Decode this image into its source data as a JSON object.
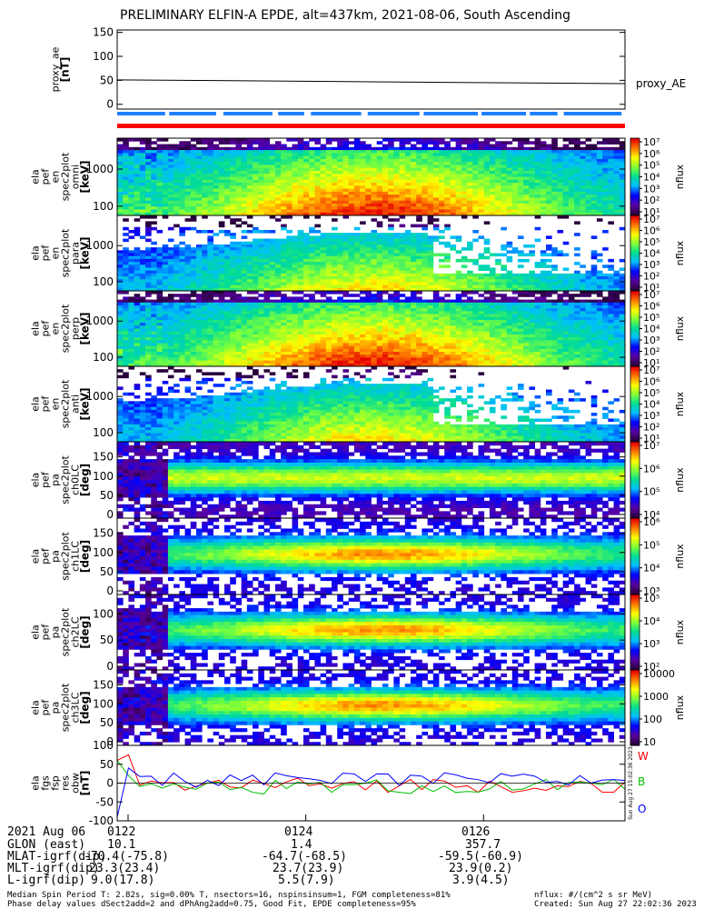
{
  "title": "PRELIMINARY ELFIN-A EPDE, alt=437km, 2021-08-06, South Ascending",
  "chart_data": [
    {
      "type": "line",
      "ylabel": "proxy_ae\n[nT]",
      "yticks": [
        "150",
        "100",
        "50",
        "0"
      ],
      "ylim": [
        -10,
        155
      ],
      "series": [
        {
          "name": "proxy_AE",
          "x": [
            0,
            0.5,
            1
          ],
          "y": [
            51,
            47,
            43
          ],
          "color": "#000000"
        }
      ]
    },
    {
      "type": "heatmap",
      "ylabel": "ela\npef\nen\nspec2plot\nomni\n[keV]",
      "yticks": [
        "1000",
        "100"
      ],
      "zlabel": "nflux",
      "zticks": [
        "10^7",
        "10^6",
        "10^5",
        "10^4",
        "10^3",
        "10^2",
        "10^1"
      ],
      "zrange": [
        1,
        7
      ]
    },
    {
      "type": "heatmap",
      "ylabel": "ela\npef\nen\nspec2plot\npara\n[keV]",
      "yticks": [
        "1000",
        "100"
      ],
      "zlabel": "nflux",
      "zticks": [
        "10^7",
        "10^6",
        "10^5",
        "10^4",
        "10^3",
        "10^2",
        "10^1"
      ],
      "zrange": [
        1,
        7
      ]
    },
    {
      "type": "heatmap",
      "ylabel": "ela\npef\nen\nspec2plot\nperp\n[keV]",
      "yticks": [
        "1000",
        "100"
      ],
      "zlabel": "nflux",
      "zticks": [
        "10^7",
        "10^6",
        "10^5",
        "10^4",
        "10^3",
        "10^2",
        "10^1"
      ],
      "zrange": [
        1,
        7
      ]
    },
    {
      "type": "heatmap",
      "ylabel": "ela\npef\nen\nspec2plot\nanti\n[keV]",
      "yticks": [
        "1000",
        "100"
      ],
      "zlabel": "nflux",
      "zticks": [
        "10^7",
        "10^6",
        "10^5",
        "10^4",
        "10^3",
        "10^2",
        "10^1"
      ],
      "zrange": [
        1,
        7
      ]
    },
    {
      "type": "heatmap",
      "ylabel": "ela\npef\npa\nspec2plot\nch0LC\n[deg]",
      "yticks": [
        "150",
        "100",
        "50",
        "0"
      ],
      "zlabel": "nflux",
      "zticks": [
        "10^7",
        "10^6",
        "10^5",
        "10^4"
      ],
      "zrange": [
        3.8,
        7
      ]
    },
    {
      "type": "heatmap",
      "ylabel": "ela\npef\npa\nspec2plot\nch1LC\n[deg]",
      "yticks": [
        "150",
        "100",
        "50",
        "0"
      ],
      "zlabel": "nflux",
      "zticks": [
        "10^6",
        "10^5",
        "10^4",
        "10^3"
      ],
      "zrange": [
        3,
        6.6
      ]
    },
    {
      "type": "heatmap",
      "ylabel": "ela\npef\npa\nspec2plot\nch2LC\n[deg]",
      "yticks": [
        "100",
        "50",
        "0"
      ],
      "zlabel": "nflux",
      "zticks": [
        "10^5",
        "10^4",
        "10^3",
        "10^2"
      ],
      "zrange": [
        2,
        5.8
      ]
    },
    {
      "type": "heatmap",
      "ylabel": "ela\npef\npa\nspec2plot\nch3LC\n[deg]",
      "yticks": [
        "150",
        "100",
        "50",
        "0"
      ],
      "zlabel": "nflux",
      "zticks": [
        "10000",
        "1000",
        "100",
        "10"
      ],
      "zrange": [
        1,
        4.2
      ]
    },
    {
      "type": "line",
      "ylabel": "ela\nfgs\nfsp\nres\nobw\n[nT]",
      "yticks": [
        "100",
        "50",
        "0",
        "-50",
        "-100"
      ],
      "ylim": [
        -100,
        100
      ],
      "legend": [
        "W",
        "B",
        "O"
      ],
      "series": [
        {
          "name": "W",
          "color": "#ff0000"
        },
        {
          "name": "B",
          "color": "#00c000"
        },
        {
          "name": "O",
          "color": "#0000ff"
        }
      ]
    }
  ],
  "x_ticks": [
    "0122",
    "0124",
    "0126"
  ],
  "orbit": {
    "date": "2021 Aug 06",
    "rows": [
      {
        "label": "GLON (east)",
        "vals": [
          "10.1",
          "1.4",
          "357.7"
        ]
      },
      {
        "label": "MLAT-igrf(dip)",
        "vals": [
          "-70.4(-75.8)",
          "-64.7(-68.5)",
          "-59.5(-60.9)"
        ]
      },
      {
        "label": "MLT-igrf(dip)",
        "vals": [
          "23.3(23.4)",
          "23.7(23.9)",
          "23.9(0.2)"
        ]
      },
      {
        "label": "L-igrf(dip)",
        "vals": [
          "9.0(17.8)",
          "5.5(7.9)",
          "3.9(4.5)"
        ]
      }
    ]
  },
  "footer": {
    "line1": "Median Spin Period T: 2.82s, sig=0.00% T, nsectors=16, nspinsinsum=1, FGM completeness=81%",
    "line2": "Phase delay values dSect2add=2 and dPhAng2add=0.75, Good Fit, EPDE completeness=95%",
    "units": "nflux: #/(cm^2 s sr MeV)",
    "created": "Created: Sun Aug 27 22:02:36 2023",
    "side_stamp": "Sun Aug 27 15:02:36 2023"
  },
  "colors": {
    "red_bar": "#ff0000",
    "blue_bar": "#1f7fff"
  }
}
